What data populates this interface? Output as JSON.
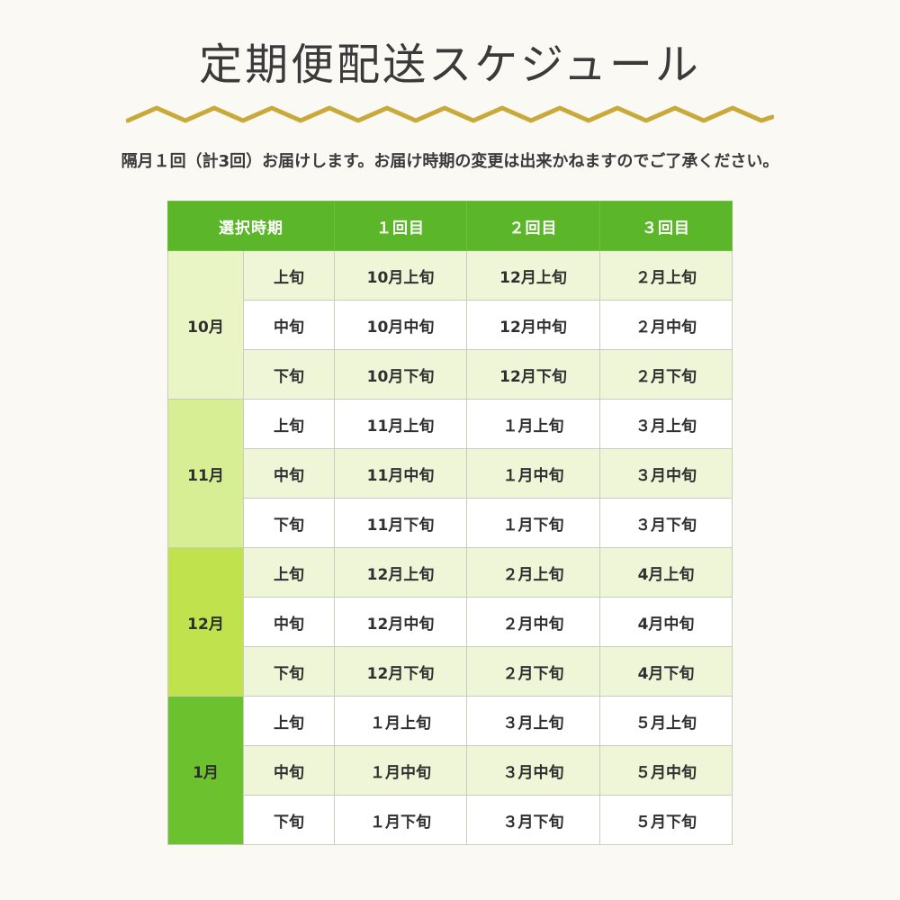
{
  "title": "定期便配送スケジュール",
  "subtitle": "隔月１回（計3回）お届けします。お届け時期の変更は出来かねますのでご了承ください。",
  "colors": {
    "header_green": "#5cb62a",
    "wave_gold": "#c9a93a",
    "row_shade": "#eef6d7",
    "month_oct": "#e9f5c4",
    "month_nov": "#d7ee95",
    "month_dec": "#bfe24d",
    "month_jan": "#6cc12e"
  },
  "table": {
    "headers": [
      "選択時期",
      "１回目",
      "２回目",
      "３回目"
    ],
    "groups": [
      {
        "month": "10月",
        "rows": [
          {
            "period": "上旬",
            "d1": "10月上旬",
            "d2": "12月上旬",
            "d3": "２月上旬"
          },
          {
            "period": "中旬",
            "d1": "10月中旬",
            "d2": "12月中旬",
            "d3": "２月中旬"
          },
          {
            "period": "下旬",
            "d1": "10月下旬",
            "d2": "12月下旬",
            "d3": "２月下旬"
          }
        ]
      },
      {
        "month": "11月",
        "rows": [
          {
            "period": "上旬",
            "d1": "11月上旬",
            "d2": "１月上旬",
            "d3": "３月上旬"
          },
          {
            "period": "中旬",
            "d1": "11月中旬",
            "d2": "１月中旬",
            "d3": "３月中旬"
          },
          {
            "period": "下旬",
            "d1": "11月下旬",
            "d2": "１月下旬",
            "d3": "３月下旬"
          }
        ]
      },
      {
        "month": "12月",
        "rows": [
          {
            "period": "上旬",
            "d1": "12月上旬",
            "d2": "２月上旬",
            "d3": "4月上旬"
          },
          {
            "period": "中旬",
            "d1": "12月中旬",
            "d2": "２月中旬",
            "d3": "4月中旬"
          },
          {
            "period": "下旬",
            "d1": "12月下旬",
            "d2": "２月下旬",
            "d3": "4月下旬"
          }
        ]
      },
      {
        "month": "1月",
        "rows": [
          {
            "period": "上旬",
            "d1": "１月上旬",
            "d2": "３月上旬",
            "d3": "５月上旬"
          },
          {
            "period": "中旬",
            "d1": "１月中旬",
            "d2": "３月中旬",
            "d3": "５月中旬"
          },
          {
            "period": "下旬",
            "d1": "１月下旬",
            "d2": "３月下旬",
            "d3": "５月下旬"
          }
        ]
      }
    ]
  }
}
